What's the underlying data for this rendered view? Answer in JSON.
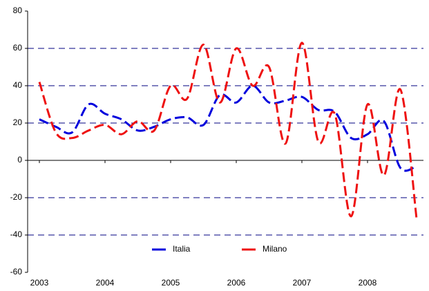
{
  "chart_data": {
    "type": "line",
    "categories": [
      "2003",
      null,
      null,
      null,
      "2004",
      null,
      null,
      null,
      "2005",
      null,
      null,
      null,
      "2006",
      null,
      null,
      null,
      "2007",
      null,
      null,
      null,
      "2008",
      null,
      null,
      null
    ],
    "series": [
      {
        "name": "Italia",
        "color": "#0000dd",
        "values": [
          22,
          18,
          15,
          30,
          25,
          22,
          16,
          18,
          22,
          23,
          19,
          35,
          31,
          40,
          31,
          32,
          34,
          27,
          26,
          12,
          14,
          21,
          -4,
          -3
        ]
      },
      {
        "name": "Milano",
        "color": "#ee1111",
        "values": [
          42,
          15,
          12,
          16,
          19,
          14,
          21,
          16,
          40,
          33,
          62,
          31,
          60,
          40,
          50,
          9,
          63,
          10,
          25,
          -30,
          30,
          -8,
          38,
          -32
        ]
      }
    ],
    "ylim": [
      -60,
      80
    ],
    "yticks": [
      -60,
      -40,
      -20,
      0,
      20,
      40,
      60,
      80
    ],
    "grid": true,
    "legend": "bottom"
  }
}
